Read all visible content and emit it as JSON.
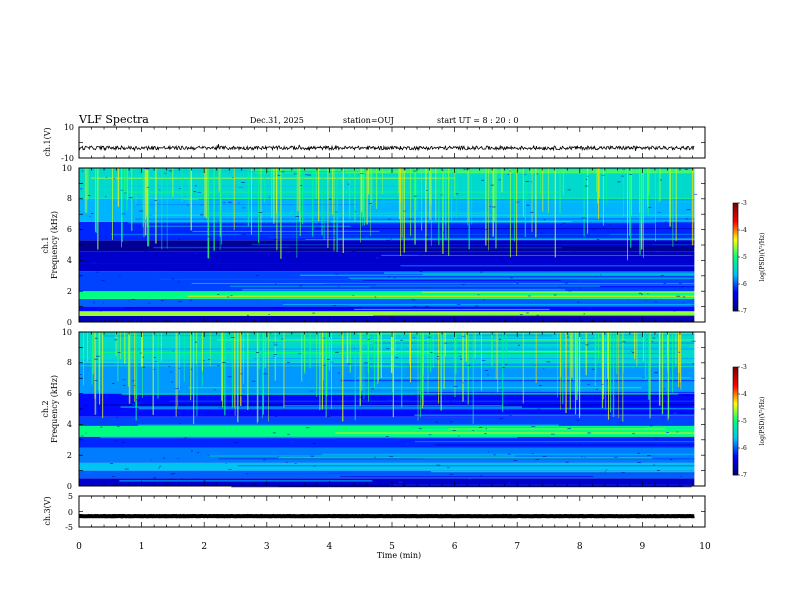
{
  "header": {
    "title": "VLF Spectra",
    "date": "Dec.31, 2025",
    "station": "station=OUJ",
    "start_time": "start  UT =   8 : 20 : 0"
  },
  "chart_data": [
    {
      "type": "line",
      "id": "ch1-waveform",
      "ylabel": "ch.1(V)",
      "ylim": [
        -10,
        10
      ],
      "yticks": [
        "10",
        "-10"
      ],
      "xlim": [
        0,
        10
      ],
      "x_end": 9.83,
      "signal": {
        "baseline": -3.5,
        "noise_amplitude": 1.2
      }
    },
    {
      "type": "heatmap",
      "id": "ch1-spectrogram",
      "ylabel": "Frequency (kHz)",
      "channel": "ch.1",
      "ylim": [
        0,
        10
      ],
      "yticks": [
        "0",
        "2",
        "4",
        "6",
        "8",
        "10"
      ],
      "xlim": [
        0,
        10
      ],
      "x_end": 9.83,
      "colorbar": {
        "label": "log(PSD)(V²/Hz)",
        "range": [
          -7,
          -3
        ],
        "ticks": [
          "-3",
          "-4",
          "-5",
          "-6",
          "-7"
        ]
      },
      "bands": [
        {
          "f0": 0.0,
          "f1": 0.4,
          "level": -6.7
        },
        {
          "f0": 0.4,
          "f1": 0.7,
          "level": -4.6
        },
        {
          "f0": 0.7,
          "f1": 1.0,
          "level": -6.3
        },
        {
          "f0": 1.0,
          "f1": 1.5,
          "level": -6.0
        },
        {
          "f0": 1.5,
          "f1": 2.0,
          "level": -5.0
        },
        {
          "f0": 2.0,
          "f1": 3.3,
          "level": -6.1
        },
        {
          "f0": 3.3,
          "f1": 3.8,
          "level": -6.6
        },
        {
          "f0": 3.8,
          "f1": 4.6,
          "level": -6.6
        },
        {
          "f0": 4.6,
          "f1": 5.3,
          "level": -6.9
        },
        {
          "f0": 5.3,
          "f1": 6.5,
          "level": -6.2
        },
        {
          "f0": 6.5,
          "f1": 8.0,
          "level": -5.7
        },
        {
          "f0": 8.0,
          "f1": 10.0,
          "level": -5.4
        }
      ],
      "sferic_density": 1.0
    },
    {
      "type": "heatmap",
      "id": "ch2-spectrogram",
      "ylabel": "Frequency (kHz)",
      "channel": "ch.2",
      "ylim": [
        0,
        10
      ],
      "yticks": [
        "0",
        "2",
        "4",
        "6",
        "8",
        "10"
      ],
      "xlim": [
        0,
        10
      ],
      "x_end": 9.83,
      "colorbar": {
        "label": "log(PSD)(V²/Hz)",
        "range": [
          -7,
          -3
        ],
        "ticks": [
          "-3",
          "-4",
          "-5",
          "-6",
          "-7"
        ]
      },
      "bands": [
        {
          "f0": 0.0,
          "f1": 0.5,
          "level": -6.6
        },
        {
          "f0": 0.5,
          "f1": 1.0,
          "level": -6.0
        },
        {
          "f0": 1.0,
          "f1": 1.5,
          "level": -5.6
        },
        {
          "f0": 1.5,
          "f1": 2.5,
          "level": -5.9
        },
        {
          "f0": 2.5,
          "f1": 3.2,
          "level": -6.2
        },
        {
          "f0": 3.2,
          "f1": 3.9,
          "level": -5.0
        },
        {
          "f0": 3.9,
          "f1": 4.5,
          "level": -6.1
        },
        {
          "f0": 4.5,
          "f1": 6.0,
          "level": -6.3
        },
        {
          "f0": 6.0,
          "f1": 8.0,
          "level": -5.8
        },
        {
          "f0": 8.0,
          "f1": 10.0,
          "level": -5.4
        }
      ],
      "sferic_density": 1.0
    },
    {
      "type": "line",
      "id": "ch3-waveform",
      "ylabel": "ch.3(V)",
      "ylim": [
        -5,
        5
      ],
      "yticks": [
        "5",
        "0",
        "-5"
      ],
      "xlim": [
        0,
        10
      ],
      "x_end": 9.83,
      "signal": {
        "baseline": -1.5,
        "noise_amplitude": 0.05
      }
    }
  ],
  "xaxis": {
    "label": "Time (min)",
    "ticks": [
      "0",
      "1",
      "2",
      "3",
      "4",
      "5",
      "6",
      "7",
      "8",
      "9",
      "10"
    ]
  },
  "colors": {
    "colormap": [
      "#000080",
      "#0000ff",
      "#00bfff",
      "#00ff80",
      "#ffff00",
      "#ff0000",
      "#800000"
    ]
  }
}
